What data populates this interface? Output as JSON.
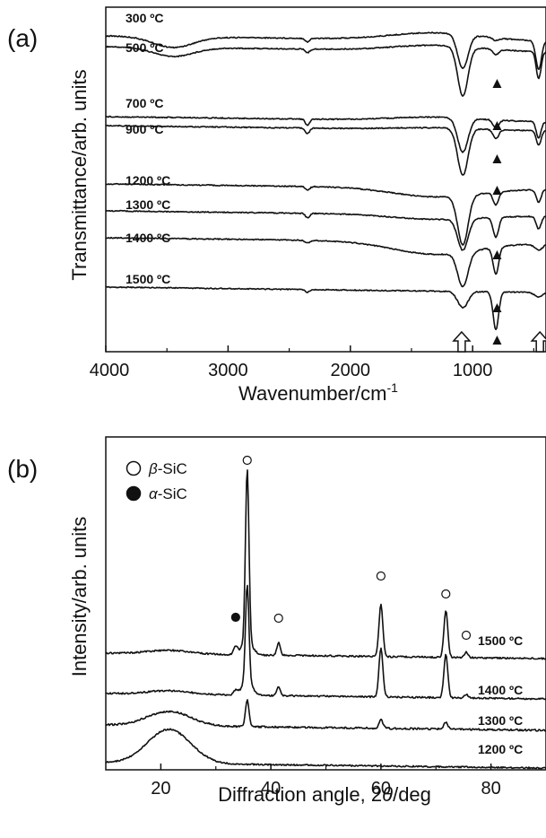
{
  "panels": [
    {
      "label": "(a)",
      "xlabel_main": "Wavenumber/cm",
      "xlabel_sup": "-1",
      "ylabel": "Transmittance/arb. units"
    },
    {
      "label": "(b)",
      "xlabel_main": "Diffraction angle, 2",
      "xlabel_theta": "θ",
      "xlabel_end": "/deg",
      "ylabel": "Intensity/arb. units",
      "legend": [
        {
          "symbol": "open-circle",
          "greek": "β",
          "text": "-SiC"
        },
        {
          "symbol": "filled-circle",
          "greek": "α",
          "text": "-SiC"
        }
      ]
    }
  ],
  "chart_data": [
    {
      "type": "line",
      "title": "",
      "xlabel": "Wavenumber/cm-1",
      "ylabel": "Transmittance/arb. units",
      "xlim": [
        4000,
        400
      ],
      "x_reversed": true,
      "x_ticks": [
        4000,
        3000,
        2000,
        1000
      ],
      "y_ticks_shown": false,
      "series_labels": [
        "300 ºC",
        "500 ºC",
        "700 ºC",
        "900 ºC",
        "1200 ºC",
        "1300 ºC",
        "1400 ºC",
        "1500 ºC"
      ],
      "features": [
        {
          "type": "broad_absorption",
          "center": 3450,
          "series": [
            "300 ºC",
            "500 ºC"
          ]
        },
        {
          "type": "absorption",
          "center": 2350,
          "series": "all"
        },
        {
          "type": "strong_absorption",
          "center": 1080,
          "series": "all"
        },
        {
          "type": "absorption",
          "center": 800,
          "marker": "filled-triangle",
          "series": [
            "500 ºC",
            "700 ºC",
            "900 ºC",
            "1200 ºC",
            "1300 ºC",
            "1400 ºC",
            "1500 ºC"
          ]
        },
        {
          "type": "absorption",
          "center": 460,
          "series": "all"
        }
      ],
      "annotations": [
        {
          "marker": "open-arrow-up",
          "x": 1090
        },
        {
          "marker": "open-arrow-up",
          "x": 450
        }
      ]
    },
    {
      "type": "line",
      "title": "",
      "xlabel": "Diffraction angle, 2θ/deg",
      "ylabel": "Intensity/arb. units",
      "xlim": [
        10,
        90
      ],
      "x_ticks": [
        20,
        40,
        60,
        80
      ],
      "y_ticks_shown": false,
      "series_labels": [
        "1500 ºC",
        "1400 ºC",
        "1300 ºC",
        "1200 ºC"
      ],
      "legend": [
        "β-SiC",
        "α-SiC"
      ],
      "legend_position": "top-left",
      "peaks": [
        {
          "x": 21.5,
          "phase": "amorphous",
          "series": [
            "1200 ºC",
            "1300 ºC"
          ]
        },
        {
          "x": 33.6,
          "phase": "α-SiC",
          "series": [
            "1500 ºC",
            "1400 ºC"
          ]
        },
        {
          "x": 35.7,
          "phase": "β-SiC",
          "series": [
            "1500 ºC",
            "1400 ºC",
            "1300 ºC"
          ]
        },
        {
          "x": 41.4,
          "phase": "β-SiC",
          "series": [
            "1500 ºC",
            "1400 ºC"
          ]
        },
        {
          "x": 60.0,
          "phase": "β-SiC",
          "series": [
            "1500 ºC",
            "1400 ºC",
            "1300 ºC"
          ]
        },
        {
          "x": 71.8,
          "phase": "β-SiC",
          "series": [
            "1500 ºC",
            "1400 ºC",
            "1300 ºC"
          ]
        },
        {
          "x": 75.5,
          "phase": "β-SiC",
          "series": [
            "1500 ºC",
            "1400 ºC"
          ]
        }
      ]
    }
  ]
}
